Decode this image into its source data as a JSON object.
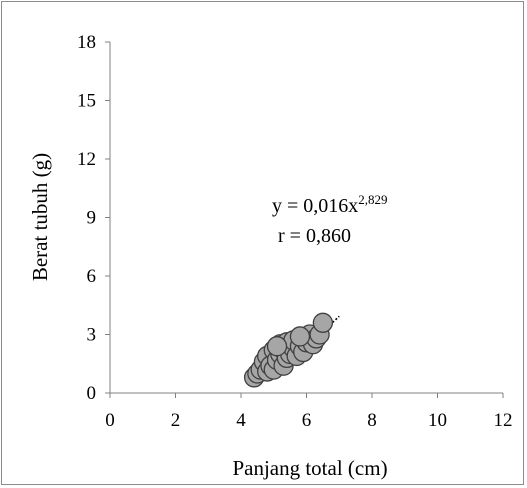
{
  "chart_data": {
    "type": "scatter",
    "title": "",
    "xlabel": "Panjang total (cm)",
    "ylabel": "Berat tubuh (g)",
    "xlim": [
      0,
      12
    ],
    "ylim": [
      0,
      18
    ],
    "x_ticks": [
      "0",
      "2",
      "4",
      "6",
      "8",
      "10",
      "12"
    ],
    "y_ticks": [
      "0",
      "3",
      "6",
      "9",
      "12",
      "15",
      "18"
    ],
    "grid": false,
    "legend": "none",
    "colors": {
      "marker_fill": "#a6a6a6",
      "marker_edge": "#404040",
      "trend": "#000000",
      "frame": "#8c8c8c"
    },
    "annotation": {
      "equation_base": "y = 0,016x",
      "equation_exponent": "2,829",
      "r_text": "r = 0,860"
    },
    "trendline": {
      "type": "power",
      "a": 0.016,
      "b": 2.829,
      "x_range": [
        4.1,
        7.0
      ],
      "style": "dotted"
    },
    "series": [
      {
        "points": [
          {
            "x": 4.4,
            "y": 0.8
          },
          {
            "x": 4.5,
            "y": 1.0
          },
          {
            "x": 4.6,
            "y": 1.2
          },
          {
            "x": 4.7,
            "y": 1.6
          },
          {
            "x": 4.8,
            "y": 1.1
          },
          {
            "x": 4.8,
            "y": 1.9
          },
          {
            "x": 4.9,
            "y": 1.4
          },
          {
            "x": 5.0,
            "y": 1.2
          },
          {
            "x": 5.0,
            "y": 2.2
          },
          {
            "x": 5.1,
            "y": 1.7
          },
          {
            "x": 5.2,
            "y": 2.0
          },
          {
            "x": 5.2,
            "y": 2.5
          },
          {
            "x": 5.3,
            "y": 1.4
          },
          {
            "x": 5.3,
            "y": 2.2
          },
          {
            "x": 5.4,
            "y": 1.8
          },
          {
            "x": 5.4,
            "y": 2.6
          },
          {
            "x": 5.5,
            "y": 2.0
          },
          {
            "x": 5.6,
            "y": 2.3
          },
          {
            "x": 5.6,
            "y": 2.7
          },
          {
            "x": 5.7,
            "y": 1.9
          },
          {
            "x": 5.8,
            "y": 2.4
          },
          {
            "x": 5.9,
            "y": 2.1
          },
          {
            "x": 6.0,
            "y": 2.6
          },
          {
            "x": 6.1,
            "y": 3.0
          },
          {
            "x": 6.2,
            "y": 2.5
          },
          {
            "x": 6.3,
            "y": 2.8
          },
          {
            "x": 6.4,
            "y": 3.0
          },
          {
            "x": 6.5,
            "y": 3.6
          },
          {
            "x": 5.8,
            "y": 2.9
          },
          {
            "x": 5.1,
            "y": 2.4
          }
        ]
      }
    ]
  }
}
